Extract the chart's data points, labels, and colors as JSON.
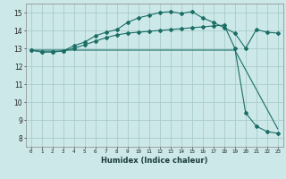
{
  "xlabel": "Humidex (Indice chaleur)",
  "bg_color": "#cce8e8",
  "grid_color": "#aacccc",
  "line_color": "#1a6e66",
  "xlim": [
    -0.5,
    23.5
  ],
  "ylim": [
    7.5,
    15.5
  ],
  "xticks": [
    0,
    1,
    2,
    3,
    4,
    5,
    6,
    7,
    8,
    9,
    10,
    11,
    12,
    13,
    14,
    15,
    16,
    17,
    18,
    19,
    20,
    21,
    22,
    23
  ],
  "yticks": [
    8,
    9,
    10,
    11,
    12,
    13,
    14,
    15
  ],
  "curve1_x": [
    0,
    1,
    2,
    3,
    4,
    5,
    6,
    7,
    8,
    9,
    10,
    11,
    12,
    13,
    14,
    15,
    16,
    17,
    18,
    19,
    20,
    21,
    22,
    23
  ],
  "curve1_y": [
    12.9,
    12.8,
    12.8,
    12.85,
    13.15,
    13.35,
    13.7,
    13.9,
    14.05,
    14.45,
    14.7,
    14.85,
    15.0,
    15.05,
    14.95,
    15.05,
    14.7,
    14.45,
    14.15,
    13.85,
    13.0,
    14.05,
    13.9,
    13.85
  ],
  "curve2_x": [
    0,
    1,
    2,
    3,
    4,
    5,
    6,
    7,
    8,
    9,
    10,
    11,
    12,
    13,
    14,
    15,
    16,
    17,
    18,
    19,
    20,
    21,
    22,
    23
  ],
  "curve2_y": [
    12.9,
    12.8,
    12.8,
    12.85,
    13.0,
    13.2,
    13.4,
    13.6,
    13.75,
    13.85,
    13.9,
    13.95,
    14.0,
    14.05,
    14.1,
    14.15,
    14.2,
    14.25,
    14.3,
    13.0,
    9.4,
    8.65,
    8.35,
    8.25
  ],
  "curve3_x": [
    0,
    19,
    20,
    21,
    22,
    23
  ],
  "curve3_y": [
    12.9,
    12.9,
    11.8,
    10.7,
    9.6,
    8.5
  ]
}
